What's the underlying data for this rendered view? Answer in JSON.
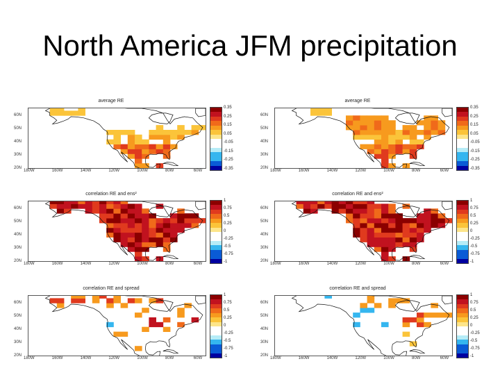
{
  "slide": {
    "title": "North America JFM precipitation"
  },
  "colors": {
    "ocean": "#ffffff",
    "land_fill": "#ffffff",
    "coast": "#111111",
    "hot": [
      "#8b0000",
      "#c1121f",
      "#e03a1e",
      "#f06a1a",
      "#f79a1e",
      "#fbc43a",
      "#fde58a"
    ],
    "cold": [
      "#b6ecf7",
      "#35b6ef",
      "#0a5bd6",
      "#0000a0"
    ]
  },
  "axes": {
    "lat_ticks": [
      "60N",
      "50N",
      "40N",
      "30N",
      "20N"
    ],
    "lon_ticks": [
      "180W",
      "160W",
      "140W",
      "120W",
      "100W",
      "80W",
      "60W"
    ]
  },
  "colorbars": {
    "average": [
      "0.35",
      "0.25",
      "0.15",
      "0.05",
      "-0.05",
      "-0.15",
      "-0.25",
      "-0.35"
    ],
    "correlation": [
      "1",
      "0.75",
      "0.5",
      "0.25",
      "0",
      "-0.25",
      "-0.5",
      "-0.75",
      "-1"
    ]
  },
  "panels": [
    {
      "id": "tl",
      "title": "average RE",
      "cbar": "average",
      "pattern": "avg1"
    },
    {
      "id": "tr",
      "title": "average RE",
      "cbar": "average",
      "pattern": "avg2"
    },
    {
      "id": "ml",
      "title": "correlation RE and ens²",
      "cbar": "correlation",
      "pattern": "corr1"
    },
    {
      "id": "mr",
      "title": "correlation RE and ens²",
      "cbar": "correlation",
      "pattern": "corr2"
    },
    {
      "id": "bl",
      "title": "correlation RE and spread",
      "cbar": "correlation",
      "pattern": "spread1"
    },
    {
      "id": "br",
      "title": "correlation RE and spread",
      "cbar": "correlation",
      "pattern": "spread2"
    }
  ]
}
